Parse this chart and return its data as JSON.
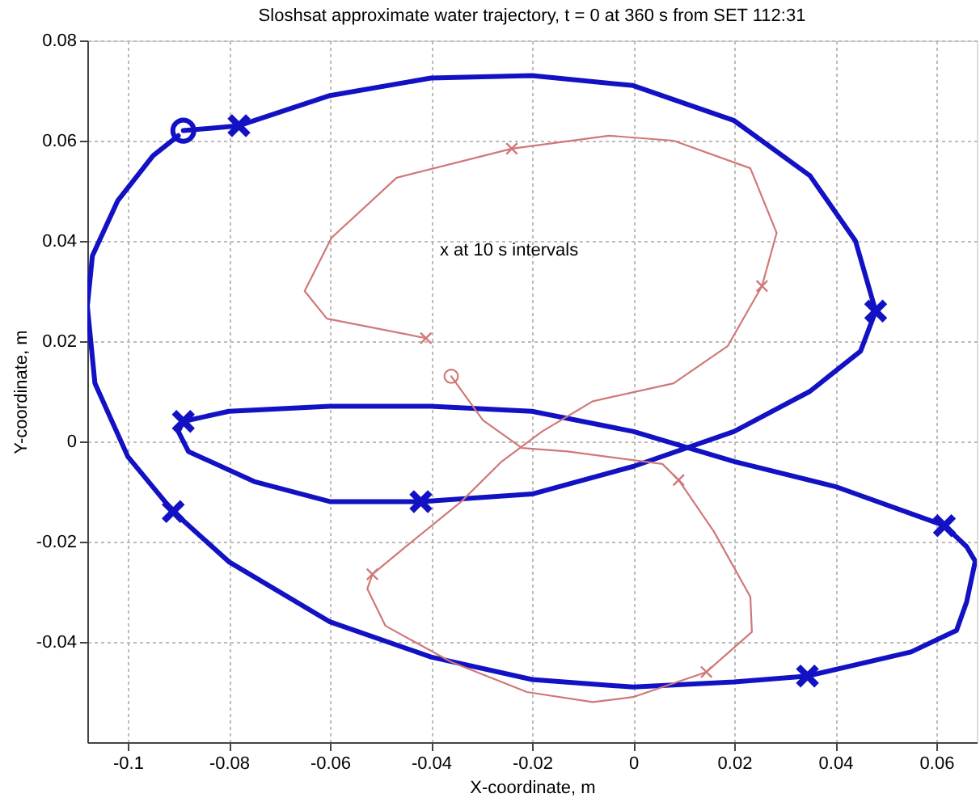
{
  "chart_data": {
    "type": "line",
    "title": "Sloshsat approximate water trajectory, t = 0 at 360 s from SET 112:31",
    "xlabel": "X-coordinate, m",
    "ylabel": "Y-coordinate, m",
    "annotations": [
      "x  at  10 s  intervals"
    ],
    "xlim": [
      -0.108,
      0.068
    ],
    "ylim": [
      -0.06,
      0.08
    ],
    "xticks": [
      -0.1,
      -0.08,
      -0.06,
      -0.04,
      -0.02,
      0,
      0.02,
      0.04,
      0.06
    ],
    "yticks": [
      -0.04,
      -0.02,
      0,
      0.02,
      0.04,
      0.06,
      0.08
    ],
    "grid": true,
    "legend": false,
    "line_style": "solid",
    "series": [
      {
        "marker": "none",
        "color": "#1212c4",
        "x": [
          -0.089,
          -0.078,
          -0.06,
          -0.04,
          -0.02,
          0.0,
          0.02,
          0.035,
          0.044,
          0.048,
          0.045,
          0.035,
          0.02,
          0.0,
          -0.02,
          -0.042,
          -0.06,
          -0.075,
          -0.088,
          -0.09,
          -0.089,
          -0.08,
          -0.06,
          -0.04,
          -0.02,
          0.0,
          0.02,
          0.04,
          0.0616,
          0.066,
          0.0677,
          0.066,
          0.064,
          0.055,
          0.0345,
          0.02,
          0.0,
          -0.02,
          -0.04,
          -0.06,
          -0.08,
          -0.091,
          -0.1,
          -0.1065,
          -0.108,
          -0.107,
          -0.102,
          -0.095,
          -0.09
        ],
        "values": [
          0.062,
          0.063,
          0.069,
          0.0725,
          0.073,
          0.071,
          0.064,
          0.053,
          0.04,
          0.026,
          0.018,
          0.01,
          0.002,
          -0.005,
          -0.0105,
          -0.012,
          -0.012,
          -0.008,
          -0.002,
          0.002,
          0.004,
          0.006,
          0.007,
          0.007,
          0.006,
          0.002,
          -0.004,
          -0.009,
          -0.0168,
          -0.021,
          -0.0239,
          -0.032,
          -0.0377,
          -0.042,
          -0.0468,
          -0.048,
          -0.049,
          -0.0475,
          -0.043,
          -0.036,
          -0.024,
          -0.014,
          -0.003,
          0.0116,
          0.027,
          0.037,
          0.048,
          0.057,
          0.061
        ]
      },
      {
        "marker": "none",
        "color": "#d07878",
        "x": [
          -0.036,
          -0.0297,
          -0.022,
          -0.013,
          0.0058,
          0.009,
          0.016,
          0.0232,
          0.0235,
          0.0145,
          0.0,
          -0.008,
          -0.021,
          -0.036,
          -0.049,
          -0.0526,
          -0.0516,
          -0.0445,
          -0.034,
          -0.026,
          -0.018,
          -0.008,
          0.008,
          0.0187,
          0.0255,
          0.0284,
          0.0232,
          0.008,
          -0.0048,
          -0.024,
          -0.0468,
          -0.0597,
          -0.065,
          -0.0606,
          -0.041
        ],
        "values": [
          0.013,
          0.0042,
          -0.0013,
          -0.002,
          -0.0045,
          -0.0077,
          -0.018,
          -0.031,
          -0.038,
          -0.046,
          -0.051,
          -0.052,
          -0.05,
          -0.044,
          -0.0368,
          -0.0294,
          -0.0265,
          -0.0206,
          -0.012,
          -0.004,
          0.002,
          0.008,
          0.0116,
          0.019,
          0.031,
          0.0416,
          0.0545,
          0.06,
          0.061,
          0.0584,
          0.0526,
          0.0406,
          0.03,
          0.0245,
          0.0206
        ]
      },
      {
        "type": "scatter",
        "marker": "cross",
        "color": "#1212c4",
        "x": [
          -0.078,
          0.048,
          -0.042,
          -0.089,
          0.0616,
          0.0345,
          -0.091
        ],
        "values": [
          0.063,
          0.026,
          -0.012,
          0.004,
          -0.0168,
          -0.0468,
          -0.014
        ]
      },
      {
        "type": "scatter",
        "marker": "cross",
        "color": "#d07878",
        "x": [
          0.009,
          0.0145,
          -0.0516,
          0.0255,
          -0.024,
          -0.041
        ],
        "values": [
          -0.0077,
          -0.046,
          -0.0265,
          0.031,
          0.0584,
          0.0206
        ]
      },
      {
        "type": "scatter",
        "marker": "circle",
        "color": "#1212c4",
        "x": [
          -0.089
        ],
        "values": [
          0.062
        ]
      },
      {
        "type": "scatter",
        "marker": "circle",
        "color": "#d07878",
        "x": [
          -0.036
        ],
        "values": [
          0.013
        ]
      }
    ]
  }
}
